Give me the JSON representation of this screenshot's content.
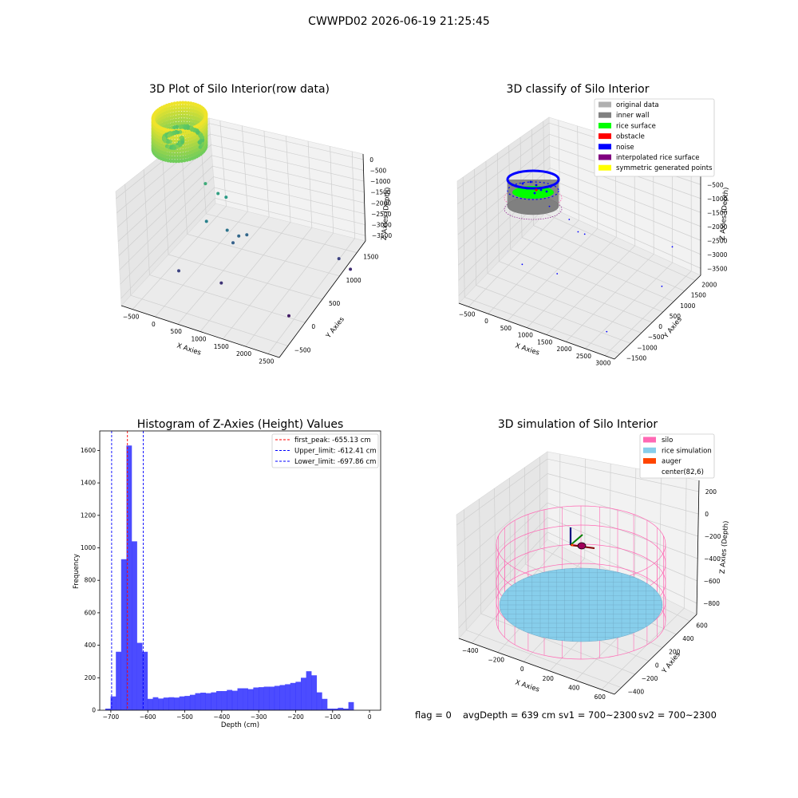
{
  "suptitle": "CWWPD02 2026-06-19 21:25:45",
  "footer": {
    "flag": "flag = 0",
    "avg_depth": "avgDepth = 639 cm",
    "sv1": "sv1 = 700~2300",
    "sv2": "sv2 = 700~2300"
  },
  "colors": {
    "hist_bar": "#0000ff",
    "peak_line": "#ff0000",
    "limit_line": "#0000ff",
    "silo": "#ff69b4",
    "rice_simulation": "#87ceeb",
    "auger": "#ff4500",
    "original_data": "#b0b0b0",
    "inner_wall": "#808080",
    "rice_surface": "#00ff00",
    "obstacle": "#ff0000",
    "noise": "#0000ff",
    "interpolated_rice_surface": "#800080",
    "symmetric_generated_points": "#ffff00"
  },
  "chart_data": [
    {
      "type": "scatter",
      "title": "3D Plot of Silo Interior(row data)",
      "xlabel": "X Axies",
      "ylabel": "Y Axies",
      "zlabel": "Z Axies (Depth)",
      "x_ticks": [
        "−500",
        "0",
        "500",
        "1000",
        "1500",
        "2000",
        "2500"
      ],
      "y_ticks": [
        "−500",
        "0",
        "500",
        "1000",
        "1500"
      ],
      "z_ticks": [
        "0",
        "−500",
        "−1000",
        "−1500",
        "−2000",
        "−2500",
        "−3000",
        "−3500"
      ],
      "colormap": "viridis by depth",
      "cluster": {
        "x_range": [
          -400,
          500
        ],
        "y_range": [
          -400,
          500
        ],
        "z_range": [
          -700,
          0
        ]
      },
      "outliers": [
        {
          "x": 500,
          "y": 200,
          "z": -1400
        },
        {
          "x": 700,
          "y": 300,
          "z": -1600
        },
        {
          "x": 800,
          "y": 400,
          "z": -1700
        },
        {
          "x": 600,
          "y": 100,
          "z": -2100
        },
        {
          "x": 900,
          "y": 300,
          "z": -2300
        },
        {
          "x": 1000,
          "y": 500,
          "z": -2500
        },
        {
          "x": 950,
          "y": 400,
          "z": -2600
        },
        {
          "x": 1100,
          "y": 600,
          "z": -2500
        },
        {
          "x": 300,
          "y": -300,
          "z": -3000
        },
        {
          "x": 1000,
          "y": 0,
          "z": -3200
        },
        {
          "x": 2500,
          "y": 1400,
          "z": -3000
        },
        {
          "x": 2600,
          "y": 1600,
          "z": -3300
        },
        {
          "x": 2400,
          "y": 100,
          "z": -3500
        }
      ]
    },
    {
      "type": "scatter",
      "title": "3D classify of Silo Interior",
      "xlabel": "X Axies",
      "ylabel": "Y Axies",
      "zlabel": "Z Axies (Depth)",
      "x_ticks": [
        "−500",
        "0",
        "500",
        "1000",
        "1500",
        "2000",
        "2500",
        "3000"
      ],
      "y_ticks": [
        "−1500",
        "−1000",
        "−500",
        "0",
        "500",
        "1000",
        "1500",
        "2000"
      ],
      "z_ticks": [
        "0",
        "−500",
        "−1000",
        "−1500",
        "−2000",
        "−2500",
        "−3000",
        "−3500"
      ],
      "legend": [
        "original data",
        "inner wall",
        "rice surface",
        "obstacle",
        "noise",
        "interpolated rice surface",
        "symmetric generated points"
      ],
      "legend_position": "top-right",
      "cylinder": {
        "radius": 500,
        "z_range": [
          -700,
          0
        ]
      },
      "noise_points": [
        {
          "x": 600,
          "y": 0,
          "z": -1200
        },
        {
          "x": 900,
          "y": 300,
          "z": -1700
        },
        {
          "x": 1000,
          "y": 500,
          "z": -2200
        },
        {
          "x": 1100,
          "y": 600,
          "z": -2300
        },
        {
          "x": 400,
          "y": -800,
          "z": -2600
        },
        {
          "x": 1000,
          "y": -400,
          "z": -2900
        },
        {
          "x": 2500,
          "y": 1800,
          "z": -2900
        },
        {
          "x": 2800,
          "y": 800,
          "z": -3300
        },
        {
          "x": 2600,
          "y": -1200,
          "z": -3400
        }
      ]
    },
    {
      "type": "bar",
      "title": "Histogram of Z-Axies (Height) Values",
      "xlabel": "Depth (cm)",
      "ylabel": "Frequency",
      "xlim": [
        -730,
        30
      ],
      "ylim": [
        0,
        1720
      ],
      "x_ticks": [
        -700,
        -600,
        -500,
        -400,
        -300,
        -200,
        -100,
        0
      ],
      "x_tick_labels": [
        "−700",
        "−600",
        "−500",
        "−400",
        "−300",
        "−200",
        "−100",
        "0"
      ],
      "y_ticks": [
        0,
        200,
        400,
        600,
        800,
        1000,
        1200,
        1400,
        1600
      ],
      "bin_start": -715,
      "bin_width": 14.3,
      "values": [
        10,
        85,
        360,
        930,
        1630,
        1040,
        415,
        360,
        70,
        80,
        72,
        78,
        80,
        78,
        85,
        88,
        95,
        105,
        108,
        105,
        110,
        118,
        118,
        125,
        120,
        135,
        135,
        130,
        140,
        142,
        145,
        145,
        150,
        155,
        160,
        168,
        175,
        200,
        240,
        215,
        110,
        70,
        10,
        10,
        15,
        10,
        50
      ],
      "lines": [
        {
          "label": "first_peak: -655.13 cm",
          "x": -655.13,
          "color": "#ff0000"
        },
        {
          "label": "Upper_limit: -612.41 cm",
          "x": -612.41,
          "color": "#0000ff"
        },
        {
          "label": "Lower_limit: -697.86 cm",
          "x": -697.86,
          "color": "#0000ff"
        }
      ],
      "legend_position": "top-right"
    },
    {
      "type": "scatter",
      "title": "3D simulation of Silo Interior",
      "xlabel": "X Axies",
      "ylabel": "Y Axies",
      "zlabel": "Z Axies (Depth)",
      "x_ticks": [
        "−400",
        "−200",
        "0",
        "200",
        "400",
        "600"
      ],
      "y_ticks": [
        "−400",
        "−200",
        "0",
        "200",
        "400",
        "600"
      ],
      "z_ticks": [
        "200",
        "0",
        "−200",
        "−400",
        "−600",
        "−800"
      ],
      "legend": [
        "silo",
        "rice simulation",
        "auger",
        "center(82,6)"
      ],
      "legend_position": "top-right",
      "silo": {
        "radius": 500,
        "z_range": [
          -800,
          0
        ]
      },
      "rice_surface_depth": -400,
      "center": {
        "x": 82,
        "y": 6
      }
    }
  ]
}
